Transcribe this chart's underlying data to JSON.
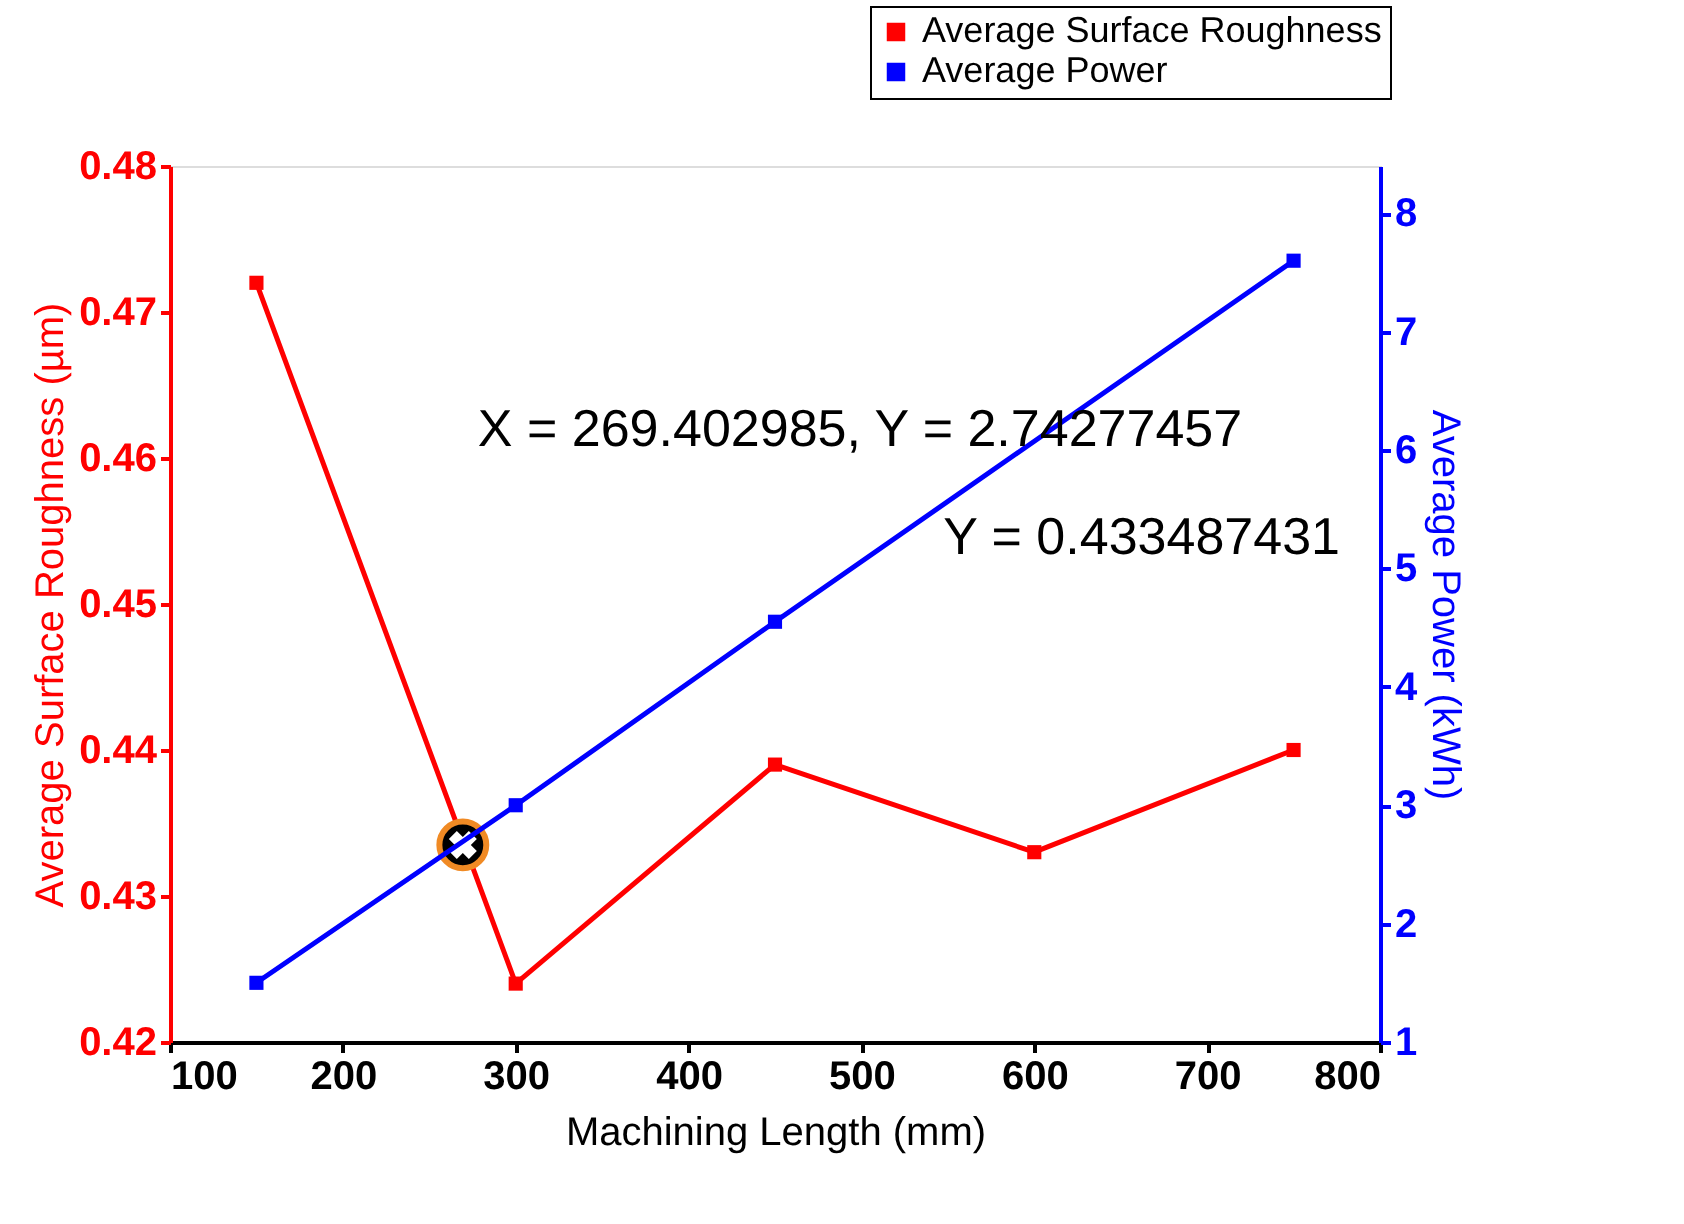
{
  "chart_data": {
    "type": "line",
    "xlabel": "Machining Length (mm)",
    "ylabel": "Average Surface Roughness (µm)",
    "y2label": "Average Power (kWh)",
    "x": [
      150,
      300,
      450,
      600,
      750
    ],
    "series": [
      {
        "name": "Average Surface Roughness",
        "color": "#ff0000",
        "values": [
          0.472,
          0.424,
          0.439,
          0.433,
          0.44
        ]
      },
      {
        "name": "Average Power",
        "color": "#0000ff",
        "axis": "y2",
        "x": [
          150,
          300,
          450,
          750
        ],
        "values": [
          1.5,
          3.0,
          4.55,
          7.6
        ]
      },
      {
        "type": "scatter",
        "color": "#000000",
        "marker": "circle",
        "x": [
          269.4
        ],
        "values": [
          0.4335
        ]
      }
    ],
    "xlim": [
      100,
      800
    ],
    "xticks": [
      100,
      200,
      300,
      400,
      500,
      600,
      700,
      800
    ],
    "ylim": [
      0.42,
      0.48
    ],
    "yticks": [
      0.42,
      0.43,
      0.44,
      0.45,
      0.46,
      0.47,
      0.48
    ],
    "y2lim": [
      1,
      8.4
    ],
    "y2ticks": [
      1,
      2,
      3,
      4,
      5,
      6,
      7,
      8
    ],
    "annotations": [
      "X = 269.402985, Y = 2.74277457",
      "Y = 0.433487431"
    ],
    "marker": "square",
    "line_style": "solid",
    "grid": false,
    "legend": "top right"
  }
}
